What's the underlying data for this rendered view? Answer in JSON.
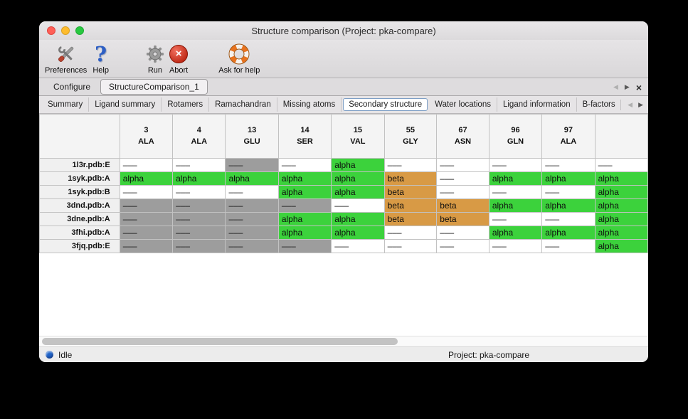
{
  "window": {
    "title": "Structure comparison (Project: pka-compare)"
  },
  "toolbar": {
    "items": [
      {
        "name": "preferences-button",
        "label": "Preferences",
        "icon": "tools-icon"
      },
      {
        "name": "help-button",
        "label": "Help",
        "icon": "help-icon"
      },
      {
        "name": "run-button",
        "label": "Run",
        "icon": "gear-icon"
      },
      {
        "name": "abort-button",
        "label": "Abort",
        "icon": "abort-icon"
      },
      {
        "name": "ask-for-help-button",
        "label": "Ask for help",
        "icon": "lifebuoy-icon"
      }
    ]
  },
  "tabs": {
    "items": [
      {
        "label": "Configure",
        "active": false
      },
      {
        "label": "StructureComparison_1",
        "active": true
      }
    ],
    "controls": {
      "left": "◀",
      "right": "▶",
      "close": "×"
    }
  },
  "subtabs": {
    "items": [
      "Summary",
      "Ligand summary",
      "Rotamers",
      "Ramachandran",
      "Missing atoms",
      "Secondary structure",
      "Water locations",
      "Ligand information",
      "B-factors"
    ],
    "selected": "Secondary structure",
    "controls": {
      "left": "◀",
      "right": "▶"
    }
  },
  "table": {
    "columns": [
      {
        "number": "3",
        "residue": "ALA"
      },
      {
        "number": "4",
        "residue": "ALA"
      },
      {
        "number": "13",
        "residue": "GLU"
      },
      {
        "number": "14",
        "residue": "SER"
      },
      {
        "number": "15",
        "residue": "VAL"
      },
      {
        "number": "55",
        "residue": "GLY"
      },
      {
        "number": "67",
        "residue": "ASN"
      },
      {
        "number": "96",
        "residue": "GLN"
      },
      {
        "number": "97",
        "residue": "ALA"
      },
      {
        "number": "",
        "residue": ""
      }
    ],
    "cell_types": {
      "none": {
        "text": "–––",
        "bg": "#ffffff"
      },
      "gray": {
        "text": "–––",
        "bg": "#9d9d9d"
      },
      "alpha": {
        "text": "alpha",
        "bg": "#3cd23c"
      },
      "beta": {
        "text": "beta",
        "bg": "#d89a45"
      }
    },
    "rows": [
      {
        "label": "1l3r.pdb:E",
        "cells": [
          "none",
          "none",
          "gray",
          "none",
          "alpha",
          "none",
          "none",
          "none",
          "none",
          "none"
        ]
      },
      {
        "label": "1syk.pdb:A",
        "cells": [
          "alpha",
          "alpha",
          "alpha",
          "alpha",
          "alpha",
          "beta",
          "none",
          "alpha",
          "alpha",
          "alpha"
        ]
      },
      {
        "label": "1syk.pdb:B",
        "cells": [
          "none",
          "none",
          "none",
          "alpha",
          "alpha",
          "beta",
          "none",
          "none",
          "none",
          "alpha"
        ]
      },
      {
        "label": "3dnd.pdb:A",
        "cells": [
          "gray",
          "gray",
          "gray",
          "gray",
          "none",
          "beta",
          "beta",
          "alpha",
          "alpha",
          "alpha"
        ]
      },
      {
        "label": "3dne.pdb:A",
        "cells": [
          "gray",
          "gray",
          "gray",
          "alpha",
          "alpha",
          "beta",
          "beta",
          "none",
          "none",
          "alpha"
        ]
      },
      {
        "label": "3fhi.pdb:A",
        "cells": [
          "gray",
          "gray",
          "gray",
          "alpha",
          "alpha",
          "none",
          "none",
          "alpha",
          "alpha",
          "alpha"
        ]
      },
      {
        "label": "3fjq.pdb:E",
        "cells": [
          "gray",
          "gray",
          "gray",
          "gray",
          "none",
          "none",
          "none",
          "none",
          "none",
          "alpha"
        ]
      }
    ]
  },
  "statusbar": {
    "status": "Idle",
    "project": "Project: pka-compare",
    "dot_color": "#1f63c8"
  }
}
